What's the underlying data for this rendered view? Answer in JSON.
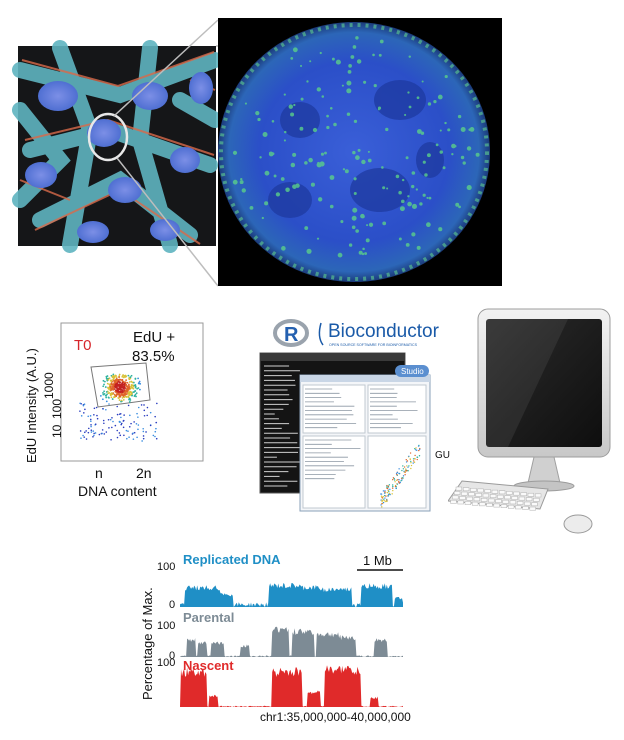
{
  "cells": {
    "zoom_icon": "magnify-circle"
  },
  "flow_plot": {
    "panel_label": "T0",
    "gate_label": "EdU +",
    "gate_percent": "83.5%",
    "ylabel": "EdU Intensity (A.U.)",
    "yticks": [
      "1000",
      "100",
      "10"
    ],
    "xticks": [
      "n",
      "2n"
    ],
    "xlabel": "DNA content",
    "colors": {
      "panel_label": "#d6262b"
    }
  },
  "software": {
    "r_logo": "R",
    "bioconductor": "Bioconductor",
    "bioconductor_tagline": "OPEN SOURCE SOFTWARE FOR BIOINFORMATICS",
    "rstudio_badge": "Studio",
    "gui_label": "GUI",
    "computer_icon": "desktop-computer-icon"
  },
  "tracks": {
    "scale_label": "1 Mb",
    "ylabel": "Percentage of Max.",
    "coords": "chr1:35,000,000-40,000,000",
    "items": [
      {
        "name": "Replicated DNA",
        "ymax": "100",
        "ymin": "0",
        "color": "#1f8fc6"
      },
      {
        "name": "Parental",
        "ymax": "100",
        "ymin": "0",
        "color": "#7d8b95"
      },
      {
        "name": "Nascent",
        "ymax": "100",
        "ymin": "",
        "color": "#e02a2a"
      }
    ]
  }
}
